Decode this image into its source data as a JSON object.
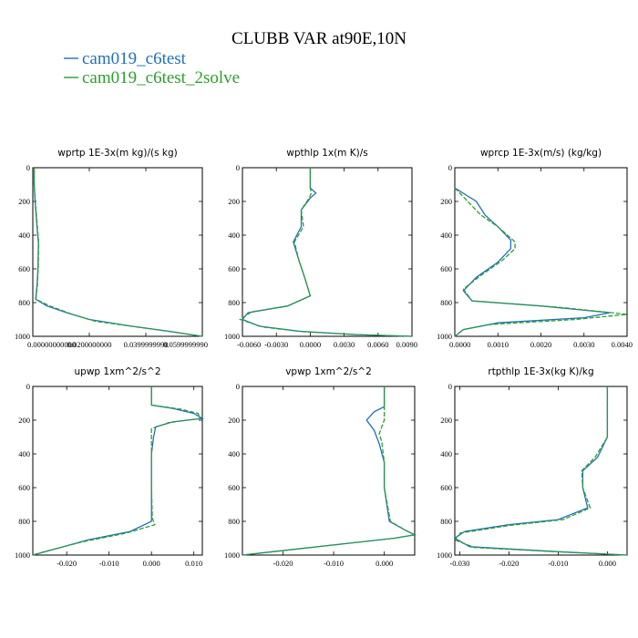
{
  "title": "CLUBB VAR at90E,10N",
  "legend": [
    {
      "label": "cam019_c6test",
      "color": "#1f6fbf",
      "dash": "solid"
    },
    {
      "label": "cam019_c6test_2solve",
      "color": "#2ca02c",
      "dash": "dashed"
    }
  ],
  "chart_data": [
    {
      "type": "line",
      "title": "wprtp  1E-3x(m kg)/(s kg)",
      "xlim": [
        0.0,
        0.06
      ],
      "ylim": [
        1000,
        0
      ],
      "xticks": [
        0.0,
        0.02,
        0.04,
        0.06
      ],
      "xtick_labels": [
        "0.00000000000",
        "0.0200000000",
        "0.0399999990",
        "0.0599999990"
      ],
      "yticks": [
        0,
        200,
        400,
        600,
        800,
        1000
      ],
      "ytick_labels": [
        "0",
        "200",
        "400",
        "600",
        "800",
        "1000"
      ],
      "series": [
        {
          "name": "cam019_c6test",
          "points": [
            [
              0.0005,
              0
            ],
            [
              0.0005,
              100
            ],
            [
              0.0008,
              200
            ],
            [
              0.0015,
              350
            ],
            [
              0.002,
              450
            ],
            [
              0.0018,
              600
            ],
            [
              0.0015,
              700
            ],
            [
              0.001,
              780
            ],
            [
              0.005,
              820
            ],
            [
              0.012,
              860
            ],
            [
              0.02,
              900
            ],
            [
              0.035,
              940
            ],
            [
              0.048,
              970
            ],
            [
              0.056,
              990
            ],
            [
              0.06,
              1000
            ]
          ]
        },
        {
          "name": "cam019_c6test_2solve",
          "points": [
            [
              0.0005,
              0
            ],
            [
              0.0005,
              100
            ],
            [
              0.0009,
              200
            ],
            [
              0.0016,
              350
            ],
            [
              0.0021,
              450
            ],
            [
              0.0019,
              600
            ],
            [
              0.0016,
              700
            ],
            [
              0.0011,
              780
            ],
            [
              0.006,
              820
            ],
            [
              0.014,
              870
            ],
            [
              0.022,
              910
            ],
            [
              0.037,
              945
            ],
            [
              0.05,
              975
            ],
            [
              0.058,
              995
            ],
            [
              0.06,
              1000
            ]
          ]
        }
      ]
    },
    {
      "type": "line",
      "title": "wpthlp  1x(m K)/s",
      "xlim": [
        -0.006,
        0.009
      ],
      "ylim": [
        1000,
        0
      ],
      "xticks": [
        -0.006,
        -0.003,
        0.0,
        0.003,
        0.006,
        0.009
      ],
      "xtick_labels": [
        "-0.0060",
        "-0.0030",
        "0.0000",
        "0.0030",
        "0.0060",
        "0.0090"
      ],
      "yticks": [
        0,
        200,
        400,
        600,
        800,
        1000
      ],
      "ytick_labels": [
        "0",
        "200",
        "400",
        "600",
        "800",
        "1000"
      ],
      "series": [
        {
          "name": "cam019_c6test",
          "points": [
            [
              0.0,
              0
            ],
            [
              0.0,
              120
            ],
            [
              0.0005,
              150
            ],
            [
              0.0,
              180
            ],
            [
              -0.0008,
              250
            ],
            [
              -0.0008,
              350
            ],
            [
              -0.0015,
              440
            ],
            [
              -0.001,
              550
            ],
            [
              -0.0005,
              650
            ],
            [
              0.0,
              760
            ],
            [
              -0.002,
              820
            ],
            [
              -0.0055,
              860
            ],
            [
              -0.006,
              900
            ],
            [
              -0.0045,
              940
            ],
            [
              -0.001,
              970
            ],
            [
              0.004,
              990
            ],
            [
              0.009,
              1000
            ]
          ]
        },
        {
          "name": "cam019_c6test_2solve",
          "points": [
            [
              0.0,
              0
            ],
            [
              0.0,
              120
            ],
            [
              0.0001,
              150
            ],
            [
              -0.0001,
              180
            ],
            [
              -0.0008,
              250
            ],
            [
              -0.0006,
              350
            ],
            [
              -0.0014,
              440
            ],
            [
              -0.001,
              550
            ],
            [
              -0.0005,
              650
            ],
            [
              0.0,
              760
            ],
            [
              -0.002,
              820
            ],
            [
              -0.0052,
              855
            ],
            [
              -0.0062,
              900
            ],
            [
              -0.0042,
              945
            ],
            [
              -0.0008,
              972
            ],
            [
              0.004,
              990
            ],
            [
              0.009,
              1000
            ]
          ]
        }
      ]
    },
    {
      "type": "line",
      "title": "wprcp  1E-3x(m/s) (kg/kg)",
      "xlim": [
        0.0,
        0.004
      ],
      "ylim": [
        1000,
        0
      ],
      "xticks": [
        0.0,
        0.001,
        0.002,
        0.003,
        0.004
      ],
      "xtick_labels": [
        "0.0000",
        "0.0010",
        "0.0020",
        "0.0030",
        "0.0040"
      ],
      "yticks": [
        0,
        200,
        400,
        600,
        800,
        1000
      ],
      "ytick_labels": [
        "0",
        "200",
        "400",
        "600",
        "800",
        "1000"
      ],
      "series": [
        {
          "name": "cam019_c6test",
          "points": [
            [
              0.0,
              120
            ],
            [
              0.0005,
              200
            ],
            [
              0.0007,
              280
            ],
            [
              0.001,
              350
            ],
            [
              0.0013,
              430
            ],
            [
              0.0013,
              480
            ],
            [
              0.001,
              560
            ],
            [
              0.0005,
              650
            ],
            [
              0.0002,
              730
            ],
            [
              0.0004,
              790
            ],
            [
              0.002,
              820
            ],
            [
              0.0036,
              860
            ],
            [
              0.003,
              890
            ],
            [
              0.001,
              920
            ],
            [
              0.0002,
              960
            ],
            [
              0.0,
              1000
            ]
          ]
        },
        {
          "name": "cam019_c6test_2solve",
          "points": [
            [
              0.0,
              120
            ],
            [
              0.0003,
              200
            ],
            [
              0.0006,
              280
            ],
            [
              0.001,
              350
            ],
            [
              0.0014,
              440
            ],
            [
              0.0014,
              480
            ],
            [
              0.0011,
              550
            ],
            [
              0.0006,
              640
            ],
            [
              0.0002,
              720
            ],
            [
              0.0004,
              790
            ],
            [
              0.0025,
              830
            ],
            [
              0.004,
              870
            ],
            [
              0.0028,
              900
            ],
            [
              0.0008,
              930
            ],
            [
              0.0002,
              960
            ],
            [
              0.0,
              1000
            ]
          ]
        }
      ]
    },
    {
      "type": "line",
      "title": "upwp  1xm^2/s^2",
      "xlim": [
        -0.028,
        0.012
      ],
      "ylim": [
        1000,
        0
      ],
      "xticks": [
        -0.02,
        -0.01,
        0.0,
        0.01
      ],
      "xtick_labels": [
        "-0.020",
        "-0.010",
        "0.000",
        "0.010"
      ],
      "yticks": [
        0,
        200,
        400,
        600,
        800,
        1000
      ],
      "ytick_labels": [
        "0",
        "200",
        "400",
        "600",
        "800",
        "1000"
      ],
      "series": [
        {
          "name": "cam019_c6test",
          "points": [
            [
              0.0,
              0
            ],
            [
              0.0,
              110
            ],
            [
              0.005,
              130
            ],
            [
              0.01,
              160
            ],
            [
              0.012,
              190
            ],
            [
              0.005,
              210
            ],
            [
              0.001,
              240
            ],
            [
              0.0005,
              300
            ],
            [
              0.0,
              400
            ],
            [
              0.0,
              600
            ],
            [
              0.0,
              800
            ],
            [
              -0.005,
              860
            ],
            [
              -0.015,
              910
            ],
            [
              -0.025,
              980
            ],
            [
              -0.028,
              1000
            ]
          ]
        },
        {
          "name": "cam019_c6test_2solve",
          "points": [
            [
              0.0,
              0
            ],
            [
              0.0,
              110
            ],
            [
              0.007,
              135
            ],
            [
              0.011,
              160
            ],
            [
              0.0115,
              190
            ],
            [
              0.004,
              215
            ],
            [
              0.0,
              250
            ],
            [
              0.0,
              400
            ],
            [
              0.0,
              600
            ],
            [
              0.0002,
              780
            ],
            [
              0.0008,
              820
            ],
            [
              -0.006,
              870
            ],
            [
              -0.016,
              920
            ],
            [
              -0.026,
              985
            ],
            [
              -0.028,
              1000
            ]
          ]
        }
      ]
    },
    {
      "type": "line",
      "title": "vpwp  1xm^2/s^2",
      "xlim": [
        -0.028,
        0.006
      ],
      "ylim": [
        1000,
        0
      ],
      "xticks": [
        -0.02,
        -0.01,
        0.0
      ],
      "xtick_labels": [
        "-0.020",
        "-0.010",
        "0.000"
      ],
      "yticks": [
        0,
        200,
        400,
        600,
        800,
        1000
      ],
      "ytick_labels": [
        "0",
        "200",
        "400",
        "600",
        "800",
        "1000"
      ],
      "series": [
        {
          "name": "cam019_c6test",
          "points": [
            [
              0.0,
              0
            ],
            [
              0.0,
              120
            ],
            [
              -0.002,
              150
            ],
            [
              -0.0035,
              200
            ],
            [
              -0.002,
              260
            ],
            [
              -0.001,
              340
            ],
            [
              0.0,
              450
            ],
            [
              0.0,
              600
            ],
            [
              0.001,
              800
            ],
            [
              0.004,
              850
            ],
            [
              0.006,
              880
            ],
            [
              0.002,
              900
            ],
            [
              -0.01,
              940
            ],
            [
              -0.022,
              980
            ],
            [
              -0.028,
              1000
            ]
          ]
        },
        {
          "name": "cam019_c6test_2solve",
          "points": [
            [
              0.0,
              0
            ],
            [
              0.0,
              150
            ],
            [
              0.0,
              200
            ],
            [
              -0.001,
              280
            ],
            [
              -0.0005,
              330
            ],
            [
              0.0,
              450
            ],
            [
              0.0,
              600
            ],
            [
              0.0012,
              800
            ],
            [
              0.004,
              850
            ],
            [
              0.006,
              880
            ],
            [
              0.002,
              900
            ],
            [
              -0.01,
              940
            ],
            [
              -0.022,
              980
            ],
            [
              -0.028,
              1000
            ]
          ]
        }
      ]
    },
    {
      "type": "line",
      "title": "rtpthlp  1E-3x(kg K)/kg",
      "xlim": [
        -0.031,
        0.004
      ],
      "ylim": [
        1000,
        0
      ],
      "xticks": [
        -0.03,
        -0.02,
        -0.01,
        0.0
      ],
      "xtick_labels": [
        "-0.030",
        "-0.020",
        "-0.010",
        "0.000"
      ],
      "yticks": [
        0,
        200,
        400,
        600,
        800,
        1000
      ],
      "ytick_labels": [
        "0",
        "200",
        "400",
        "600",
        "800",
        "1000"
      ],
      "series": [
        {
          "name": "cam019_c6test",
          "points": [
            [
              0.0,
              0
            ],
            [
              0.0,
              300
            ],
            [
              -0.002,
              420
            ],
            [
              -0.005,
              500
            ],
            [
              -0.005,
              600
            ],
            [
              -0.004,
              720
            ],
            [
              -0.01,
              790
            ],
            [
              -0.02,
              820
            ],
            [
              -0.029,
              860
            ],
            [
              -0.031,
              900
            ],
            [
              -0.028,
              950
            ],
            [
              -0.01,
              980
            ],
            [
              0.004,
              1000
            ]
          ]
        },
        {
          "name": "cam019_c6test_2solve",
          "points": [
            [
              0.0,
              0
            ],
            [
              0.0,
              300
            ],
            [
              -0.0025,
              420
            ],
            [
              -0.0052,
              500
            ],
            [
              -0.005,
              600
            ],
            [
              -0.0035,
              720
            ],
            [
              -0.009,
              790
            ],
            [
              -0.02,
              825
            ],
            [
              -0.03,
              870
            ],
            [
              -0.031,
              910
            ],
            [
              -0.027,
              955
            ],
            [
              -0.009,
              982
            ],
            [
              0.004,
              1000
            ]
          ]
        }
      ]
    }
  ]
}
